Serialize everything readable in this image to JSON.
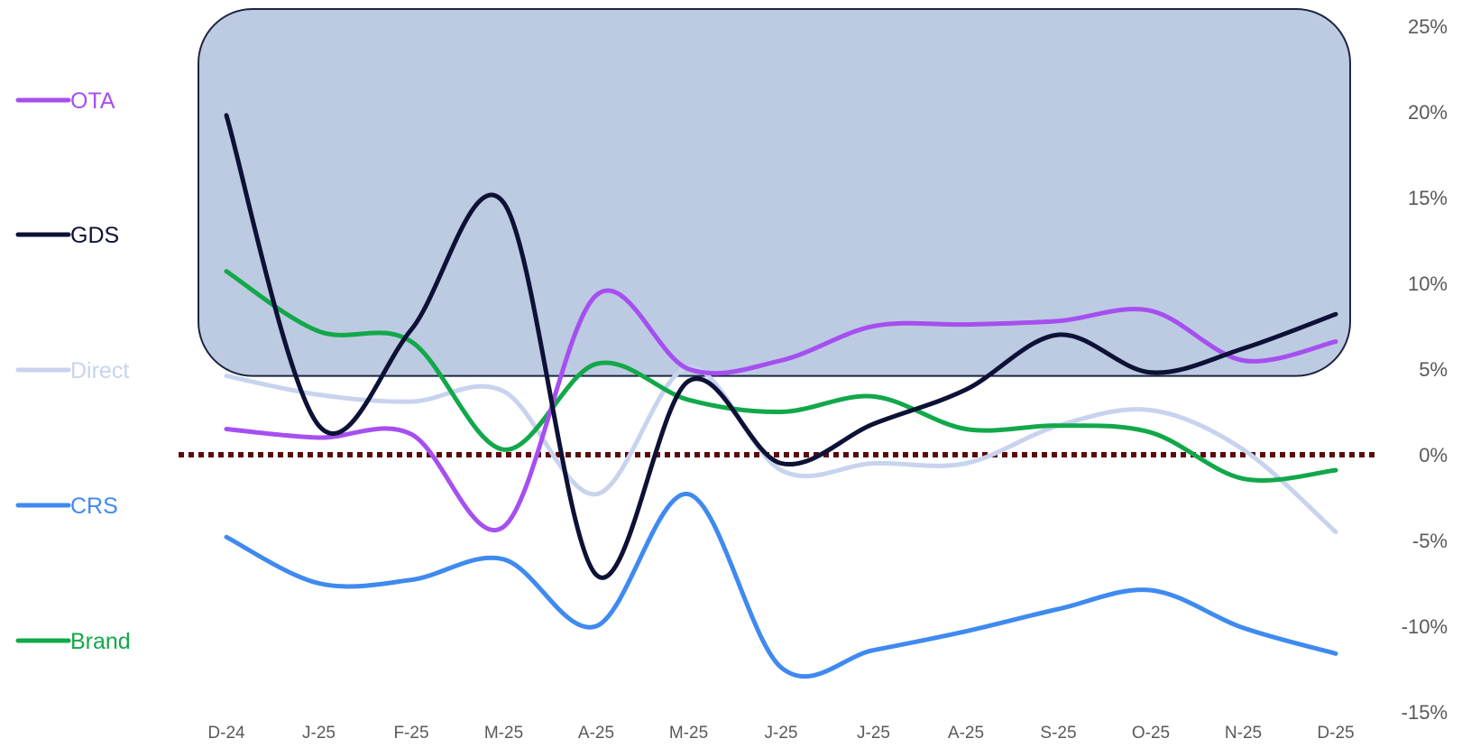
{
  "chart_data": {
    "type": "line",
    "categories": [
      "D-24",
      "J-25",
      "F-25",
      "M-25",
      "A-25",
      "M-25",
      "J-25",
      "J-25",
      "A-25",
      "S-25",
      "O-25",
      "N-25",
      "D-25"
    ],
    "ylim": [
      -15,
      25
    ],
    "yticks": [
      25,
      20,
      15,
      10,
      5,
      0,
      -5,
      -10,
      -15
    ],
    "ytick_labels": [
      "25%",
      "20%",
      "15%",
      "10%",
      "5%",
      "0%",
      "-5%",
      "-10%",
      "-15%"
    ],
    "y_axis_position": "right",
    "highlight_band": {
      "y_from": 4.6,
      "y_to": 25,
      "color": "#bccbe1",
      "border": "#1c2541"
    },
    "reference_line": {
      "y": 0,
      "style": "dotted",
      "color": "#5c0a0a"
    },
    "legend_position": "left",
    "series": [
      {
        "name": "OTA",
        "color": "#a64ff0",
        "values": [
          1.5,
          1.0,
          1.2,
          -4.2,
          9.3,
          5.0,
          5.5,
          7.5,
          7.6,
          7.8,
          8.4,
          5.5,
          6.6
        ]
      },
      {
        "name": "GDS",
        "color": "#0d1136",
        "values": [
          19.8,
          1.7,
          7.3,
          14.7,
          -7.0,
          4.3,
          -0.5,
          1.8,
          3.8,
          7.0,
          4.8,
          6.2,
          8.2
        ]
      },
      {
        "name": "Direct",
        "color": "#c8d3ee",
        "values": [
          4.6,
          3.5,
          3.1,
          3.7,
          -2.3,
          5.1,
          -0.9,
          -0.5,
          -0.5,
          1.7,
          2.6,
          0.3,
          -4.5
        ]
      },
      {
        "name": "CRS",
        "color": "#3f8af0",
        "values": [
          -4.8,
          -7.5,
          -7.3,
          -6.1,
          -10.0,
          -2.3,
          -12.4,
          -11.4,
          -10.3,
          -9.0,
          -7.9,
          -10.1,
          -11.6
        ]
      },
      {
        "name": "Brand",
        "color": "#12a84a",
        "values": [
          10.7,
          7.2,
          6.6,
          0.3,
          5.3,
          3.2,
          2.5,
          3.4,
          1.5,
          1.7,
          1.3,
          -1.4,
          -0.9
        ]
      }
    ]
  }
}
